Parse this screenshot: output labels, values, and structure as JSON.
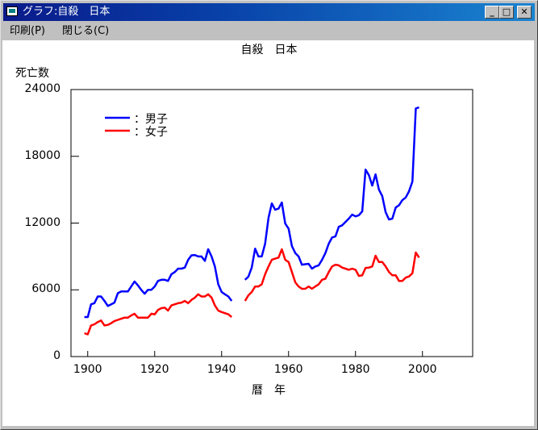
{
  "window": {
    "title": "グラフ:自殺　日本",
    "minimize_icon": "minimize-icon",
    "maximize_icon": "maximize-icon",
    "close_icon": "close-icon"
  },
  "menu": {
    "items": [
      {
        "label": "印刷(P)"
      },
      {
        "label": "閉じる(C)"
      }
    ]
  },
  "chart_data": {
    "type": "line",
    "title": "自殺　日本",
    "xlabel": "暦　年",
    "ylabel": "死亡数",
    "xlim": [
      1895,
      2015
    ],
    "ylim": [
      0,
      24000
    ],
    "xticks": [
      1900,
      1920,
      1940,
      1960,
      1980,
      2000
    ],
    "yticks": [
      0,
      6000,
      12000,
      18000,
      24000
    ],
    "xtick_labels": [
      "1900",
      "1920",
      "1940",
      "1960",
      "1980",
      "2000"
    ],
    "ytick_labels": [
      "0",
      "6000",
      "12000",
      "18000",
      "24000"
    ],
    "grid": false,
    "legend": "top-left",
    "series": [
      {
        "name": "：男子",
        "color": "#0000ff",
        "segments": [
          {
            "x": [
              1899,
              1900,
              1901,
              1902,
              1903,
              1904,
              1905,
              1906,
              1907,
              1908,
              1909,
              1910,
              1911,
              1912,
              1913,
              1914,
              1915,
              1916,
              1917,
              1918,
              1919,
              1920,
              1921,
              1922,
              1923,
              1924,
              1925,
              1926,
              1927,
              1928,
              1929,
              1930,
              1931,
              1932,
              1933,
              1934,
              1935,
              1936,
              1937,
              1938,
              1939,
              1940,
              1941,
              1942,
              1943
            ],
            "y": [
              3550,
              3550,
              4700,
              4800,
              5400,
              5400,
              5000,
              4550,
              4700,
              4850,
              5700,
              5850,
              5850,
              5850,
              6300,
              6750,
              6400,
              6000,
              5650,
              6000,
              6000,
              6300,
              6800,
              6900,
              6900,
              6800,
              7400,
              7600,
              7900,
              7900,
              8000,
              8700,
              9100,
              9130,
              9000,
              9000,
              8600,
              9650,
              9000,
              8100,
              6500,
              5800,
              5600,
              5400,
              5000
            ]
          },
          {
            "x": [
              1947,
              1948,
              1949,
              1950,
              1951,
              1952,
              1953,
              1954,
              1955,
              1956,
              1957,
              1958,
              1959,
              1960,
              1961,
              1962,
              1963,
              1964,
              1965,
              1966,
              1967,
              1968,
              1969,
              1970,
              1971,
              1972,
              1973,
              1974,
              1975,
              1976,
              1977,
              1978,
              1979,
              1980,
              1981,
              1982,
              1983,
              1984,
              1985,
              1986,
              1987,
              1988,
              1989,
              1990,
              1991,
              1992,
              1993,
              1994,
              1995,
              1996,
              1997,
              1998,
              1999
            ],
            "y": [
              6900,
              7180,
              8000,
              9700,
              9000,
              9000,
              10150,
              12470,
              13770,
              13200,
              13300,
              13850,
              11960,
              11500,
              9930,
              9300,
              9000,
              8260,
              8300,
              8340,
              7900,
              8100,
              8200,
              8700,
              9300,
              10150,
              10700,
              10800,
              11670,
              11800,
              12100,
              12400,
              12760,
              12600,
              12700,
              13050,
              16800,
              16300,
              15370,
              16380,
              15000,
              14430,
              12980,
              12320,
              12400,
              13400,
              13600,
              14060,
              14300,
              14860,
              15730,
              22300,
              22400
            ]
          }
        ]
      },
      {
        "name": "：女子",
        "color": "#ff0000",
        "segments": [
          {
            "x": [
              1899,
              1900,
              1901,
              1902,
              1903,
              1904,
              1905,
              1906,
              1907,
              1908,
              1909,
              1910,
              1911,
              1912,
              1913,
              1914,
              1915,
              1916,
              1917,
              1918,
              1919,
              1920,
              1921,
              1922,
              1923,
              1924,
              1925,
              1926,
              1927,
              1928,
              1929,
              1930,
              1931,
              1932,
              1933,
              1934,
              1935,
              1936,
              1937,
              1938,
              1939,
              1940,
              1941,
              1942,
              1943
            ],
            "y": [
              2100,
              2000,
              2800,
              2900,
              3100,
              3250,
              2800,
              2850,
              3000,
              3200,
              3300,
              3400,
              3500,
              3500,
              3700,
              3850,
              3500,
              3500,
              3500,
              3500,
              3850,
              3800,
              4200,
              4350,
              4400,
              4130,
              4600,
              4700,
              4800,
              4850,
              5000,
              4800,
              5100,
              5300,
              5600,
              5400,
              5400,
              5600,
              5300,
              4600,
              4130,
              4000,
              3900,
              3800,
              3550
            ]
          },
          {
            "x": [
              1947,
              1948,
              1949,
              1950,
              1951,
              1952,
              1953,
              1954,
              1955,
              1956,
              1957,
              1958,
              1959,
              1960,
              1961,
              1962,
              1963,
              1964,
              1965,
              1966,
              1967,
              1968,
              1969,
              1970,
              1971,
              1972,
              1973,
              1974,
              1975,
              1976,
              1977,
              1978,
              1979,
              1980,
              1981,
              1982,
              1983,
              1984,
              1985,
              1986,
              1987,
              1988,
              1989,
              1990,
              1991,
              1992,
              1993,
              1994,
              1995,
              1996,
              1997,
              1998,
              1999
            ],
            "y": [
              5000,
              5500,
              5800,
              6300,
              6300,
              6500,
              7400,
              8100,
              8700,
              8800,
              8900,
              9640,
              8700,
              8500,
              7600,
              6670,
              6300,
              6090,
              6100,
              6300,
              6100,
              6300,
              6500,
              6900,
              7000,
              7600,
              8100,
              8260,
              8200,
              8000,
              7900,
              7800,
              7900,
              7800,
              7250,
              7300,
              7970,
              8000,
              8100,
              9060,
              8500,
              8500,
              8100,
              7600,
              7300,
              7300,
              6800,
              6800,
              7100,
              7200,
              7500,
              9350,
              8900
            ]
          }
        ]
      }
    ]
  }
}
